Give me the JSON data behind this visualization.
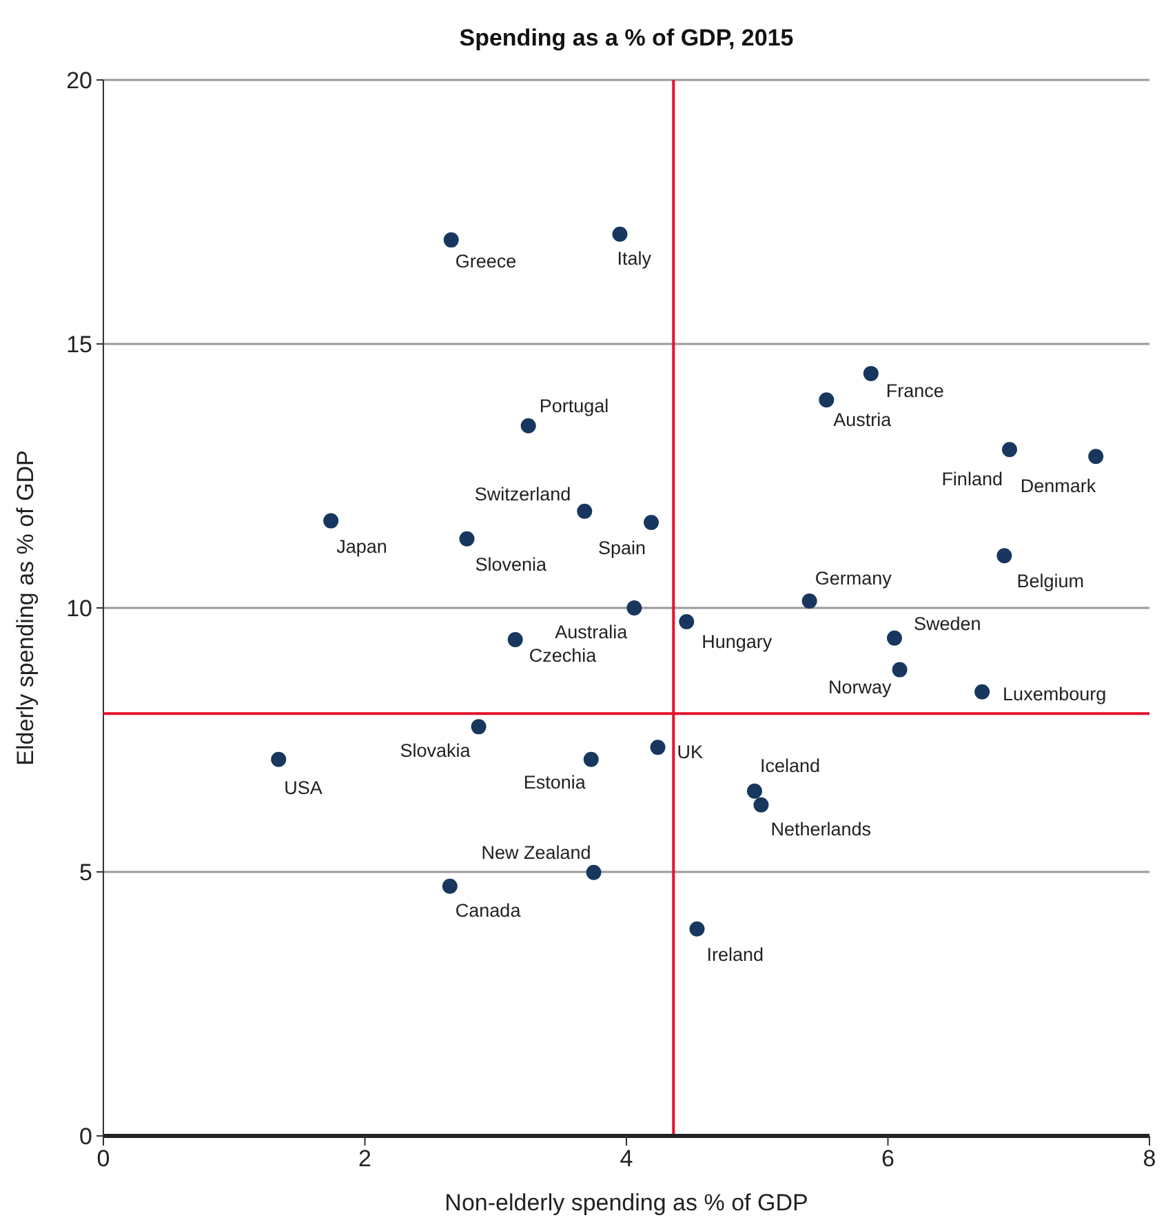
{
  "chart_data": {
    "type": "scatter",
    "title": "Spending as a % of GDP, 2015",
    "xlabel": "Non-elderly spending as % of GDP",
    "ylabel": "Elderly spending as % of GDP",
    "xlim": [
      0,
      8
    ],
    "xticks": [
      0,
      2,
      4,
      6,
      8
    ],
    "ylim": [
      0,
      20
    ],
    "yticks": [
      0,
      5,
      10,
      15,
      20
    ],
    "grid": "y",
    "marker": "circle",
    "series": [
      {
        "color": "#17375e",
        "x": [
          2.66,
          3.95,
          5.87,
          5.53,
          3.25,
          6.93,
          7.59,
          1.74,
          3.68,
          4.19,
          2.78,
          6.89,
          5.4,
          4.06,
          4.46,
          6.05,
          3.15,
          6.09,
          6.72,
          2.87,
          1.34,
          3.73,
          4.24,
          4.98,
          5.03,
          3.75,
          2.65,
          4.54
        ],
        "values": [
          16.97,
          17.08,
          14.44,
          13.94,
          13.45,
          13.0,
          12.87,
          11.65,
          11.83,
          11.62,
          11.31,
          10.99,
          10.13,
          10.0,
          9.74,
          9.43,
          9.4,
          8.83,
          8.41,
          7.75,
          7.13,
          7.13,
          7.36,
          6.53,
          6.27,
          4.99,
          4.73,
          3.92
        ]
      }
    ],
    "ref_lines": [
      {
        "axis": "x",
        "value": 4.36,
        "color": "#e3122d"
      },
      {
        "axis": "y",
        "value": 8,
        "color": "#e3122d"
      }
    ],
    "annotations": [
      {
        "text": "Greece",
        "x": 2.66,
        "y": 16.97
      },
      {
        "text": "Italy",
        "x": 3.95,
        "y": 17.08
      },
      {
        "text": "France",
        "x": 5.87,
        "y": 14.44
      },
      {
        "text": "Austria",
        "x": 5.53,
        "y": 13.94
      },
      {
        "text": "Portugal",
        "x": 3.25,
        "y": 13.45
      },
      {
        "text": "Finland",
        "x": 6.93,
        "y": 13.0
      },
      {
        "text": "Denmark",
        "x": 7.59,
        "y": 12.87
      },
      {
        "text": "Japan",
        "x": 1.74,
        "y": 11.65
      },
      {
        "text": "Switzerland",
        "x": 3.68,
        "y": 11.83
      },
      {
        "text": "Spain",
        "x": 4.19,
        "y": 11.62
      },
      {
        "text": "Slovenia",
        "x": 2.78,
        "y": 11.31
      },
      {
        "text": "Belgium",
        "x": 6.89,
        "y": 10.99
      },
      {
        "text": "Germany",
        "x": 5.4,
        "y": 10.13
      },
      {
        "text": "Australia",
        "x": 4.06,
        "y": 10.0
      },
      {
        "text": "Hungary",
        "x": 4.46,
        "y": 9.74
      },
      {
        "text": "Sweden",
        "x": 6.05,
        "y": 9.43
      },
      {
        "text": "Czechia",
        "x": 3.15,
        "y": 9.4
      },
      {
        "text": "Norway",
        "x": 6.09,
        "y": 8.83
      },
      {
        "text": "Luxembourg",
        "x": 6.72,
        "y": 8.41
      },
      {
        "text": "Slovakia",
        "x": 2.87,
        "y": 7.75
      },
      {
        "text": "USA",
        "x": 1.34,
        "y": 7.13
      },
      {
        "text": "Estonia",
        "x": 3.73,
        "y": 7.13
      },
      {
        "text": "UK",
        "x": 4.24,
        "y": 7.36
      },
      {
        "text": "Iceland",
        "x": 4.98,
        "y": 6.53
      },
      {
        "text": "Netherlands",
        "x": 5.03,
        "y": 6.27
      },
      {
        "text": "New Zealand",
        "x": 3.75,
        "y": 4.99
      },
      {
        "text": "Canada",
        "x": 2.65,
        "y": 4.73
      },
      {
        "text": "Ireland",
        "x": 4.54,
        "y": 3.92
      }
    ]
  }
}
